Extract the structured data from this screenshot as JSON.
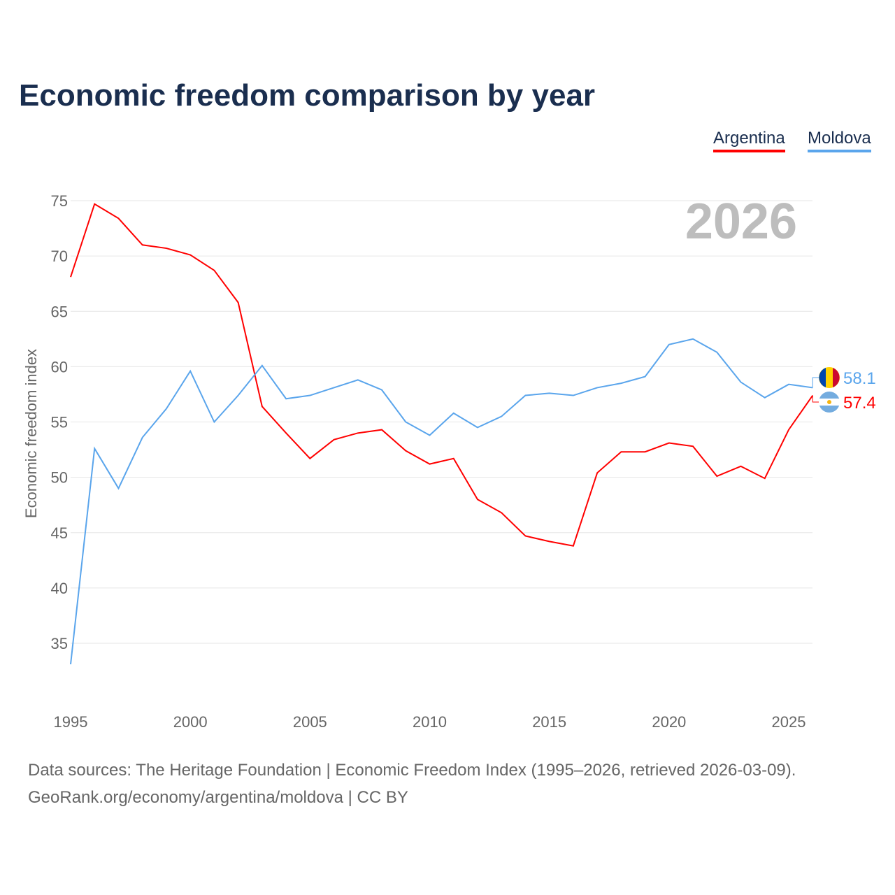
{
  "chart_data": {
    "type": "line",
    "title": "Economic freedom comparison by year",
    "ylabel": "Economic freedom index",
    "xlabel": "",
    "ylim": [
      30,
      77
    ],
    "xlim": [
      1995,
      2026
    ],
    "yticks": [
      35,
      40,
      45,
      50,
      55,
      60,
      65,
      70,
      75
    ],
    "xticks": [
      1995,
      2000,
      2005,
      2010,
      2015,
      2020,
      2025
    ],
    "current_year_label": "2026",
    "legend_position": "top-right",
    "x": [
      1995,
      1996,
      1997,
      1998,
      1999,
      2000,
      2001,
      2002,
      2003,
      2004,
      2005,
      2006,
      2007,
      2008,
      2009,
      2010,
      2011,
      2012,
      2013,
      2014,
      2015,
      2016,
      2017,
      2018,
      2019,
      2020,
      2021,
      2022,
      2023,
      2024,
      2025,
      2026
    ],
    "series": [
      {
        "name": "Argentina",
        "color": "#ff0000",
        "end_label": "57.4",
        "values": [
          68.1,
          74.7,
          73.4,
          71.0,
          70.7,
          70.1,
          68.7,
          65.8,
          56.4,
          54.0,
          51.7,
          53.4,
          54.0,
          54.3,
          52.4,
          51.2,
          51.7,
          48.0,
          46.8,
          44.7,
          44.2,
          43.8,
          50.4,
          52.3,
          52.3,
          53.1,
          52.8,
          50.1,
          51.0,
          49.9,
          54.3,
          57.4
        ]
      },
      {
        "name": "Moldova",
        "color": "#5aa5ec",
        "end_label": "58.1",
        "values": [
          33.1,
          52.6,
          49.0,
          53.6,
          56.2,
          59.6,
          55.0,
          57.4,
          60.1,
          57.1,
          57.4,
          58.1,
          58.8,
          57.9,
          55.0,
          53.8,
          55.8,
          54.5,
          55.5,
          57.4,
          57.6,
          57.4,
          58.1,
          58.5,
          59.1,
          62.0,
          62.5,
          61.3,
          58.6,
          57.2,
          58.4,
          58.1
        ]
      }
    ]
  },
  "footer": {
    "line1": "Data sources: The Heritage Foundation | Economic Freedom Index (1995–2026, retrieved 2026-03-09).",
    "line2": "GeoRank.org/economy/argentina/moldova | CC BY"
  }
}
